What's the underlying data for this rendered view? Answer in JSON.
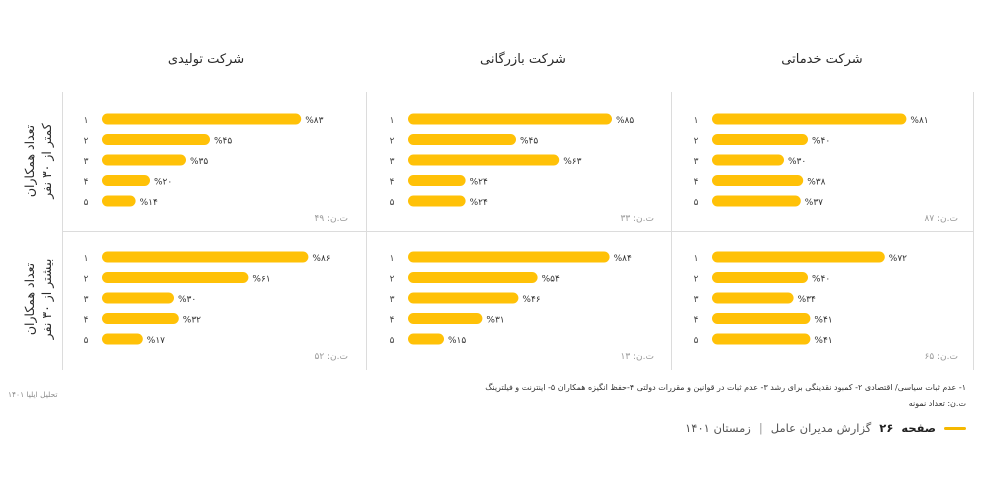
{
  "columns": [
    "شرکت خدماتی",
    "شرکت بازرگانی",
    "شرکت تولیدی"
  ],
  "rows": [
    [
      "تعداد همکاران",
      "کمتر از ۳۰ نفر"
    ],
    [
      "تعداد همکاران",
      "بیشتر از ۳۰ نفر"
    ]
  ],
  "chart_data": [
    {
      "type": "bar",
      "column": "شرکت خدماتی",
      "row": "کمتر از ۳۰ نفر",
      "categories": [
        "۱",
        "۲",
        "۳",
        "۴",
        "۵"
      ],
      "values": [
        81,
        40,
        30,
        38,
        37
      ],
      "value_labels": [
        "%۸۱",
        "%۴۰",
        "%۳۰",
        "%۳۸",
        "%۳۷"
      ],
      "n_label": "ت.ن: ۸۷",
      "xlim": [
        0,
        100
      ]
    },
    {
      "type": "bar",
      "column": "شرکت بازرگانی",
      "row": "کمتر از ۳۰ نفر",
      "categories": [
        "۱",
        "۲",
        "۳",
        "۴",
        "۵"
      ],
      "values": [
        85,
        45,
        63,
        24,
        24
      ],
      "value_labels": [
        "%۸۵",
        "%۴۵",
        "%۶۳",
        "%۲۴",
        "%۲۴"
      ],
      "n_label": "ت.ن: ۳۳",
      "xlim": [
        0,
        100
      ]
    },
    {
      "type": "bar",
      "column": "شرکت تولیدی",
      "row": "کمتر از ۳۰ نفر",
      "categories": [
        "۱",
        "۲",
        "۳",
        "۴",
        "۵"
      ],
      "values": [
        83,
        45,
        35,
        20,
        14
      ],
      "value_labels": [
        "%۸۳",
        "%۴۵",
        "%۳۵",
        "%۲۰",
        "%۱۴"
      ],
      "n_label": "ت.ن: ۴۹",
      "xlim": [
        0,
        100
      ]
    },
    {
      "type": "bar",
      "column": "شرکت خدماتی",
      "row": "بیشتر از ۳۰ نفر",
      "categories": [
        "۱",
        "۲",
        "۳",
        "۴",
        "۵"
      ],
      "values": [
        72,
        40,
        34,
        41,
        41
      ],
      "value_labels": [
        "%۷۲",
        "%۴۰",
        "%۳۴",
        "%۴۱",
        "%۴۱"
      ],
      "n_label": "ت.ن: ۶۵",
      "xlim": [
        0,
        100
      ]
    },
    {
      "type": "bar",
      "column": "شرکت بازرگانی",
      "row": "بیشتر از ۳۰ نفر",
      "categories": [
        "۱",
        "۲",
        "۳",
        "۴",
        "۵"
      ],
      "values": [
        84,
        54,
        46,
        31,
        15
      ],
      "value_labels": [
        "%۸۴",
        "%۵۴",
        "%۴۶",
        "%۳۱",
        "%۱۵"
      ],
      "n_label": "ت.ن: ۱۳",
      "xlim": [
        0,
        100
      ]
    },
    {
      "type": "bar",
      "column": "شرکت تولیدی",
      "row": "بیشتر از ۳۰ نفر",
      "categories": [
        "۱",
        "۲",
        "۳",
        "۴",
        "۵"
      ],
      "values": [
        86,
        61,
        30,
        32,
        17
      ],
      "value_labels": [
        "%۸۶",
        "%۶۱",
        "%۳۰",
        "%۳۲",
        "%۱۷"
      ],
      "n_label": "ت.ن: ۵۲",
      "xlim": [
        0,
        100
      ]
    }
  ],
  "legend": {
    "line1": "۱- عدم ثبات سیاسی/ اقتصادی  ۲- کمبود نقدینگی برای رشد  ۳- عدم ثبات در قوانین و مقررات دولتی  ۴-حفظ انگیزه همکاران  ۵- اینترنت و فیلترینگ",
    "line2": "ت.ن: تعداد نمونه"
  },
  "side_note": "تحلیل ایلیا ۱۴۰۱",
  "footer": {
    "page_word": "صفحه",
    "page_number": "۲۶",
    "report": "گزارش مدیران عامل",
    "separator": "|",
    "season": "زمستان ۱۴۰۱"
  },
  "colors": {
    "bar": "#FFC107",
    "grid": "#dcdcdc",
    "accent": "#f5b800"
  }
}
